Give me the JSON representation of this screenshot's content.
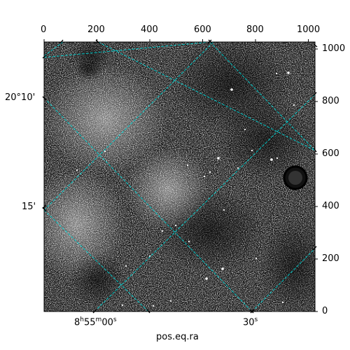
{
  "figure": {
    "image_description_colormap": "grayscale",
    "grid_color": "#00c8c8",
    "star_color": "#ffffff",
    "background_color": "#ffffff"
  },
  "pixel_axes": {
    "top_ticks": [
      "0",
      "200",
      "400",
      "600",
      "800",
      "1000"
    ],
    "right_ticks": [
      "0",
      "200",
      "400",
      "600",
      "800",
      "1000"
    ]
  },
  "world_axes": {
    "dec_ticks": [
      "20°10'",
      "15'"
    ],
    "ra_ticks_main": [
      "8",
      "55",
      "00"
    ],
    "ra_tick_units": [
      "h",
      "m",
      "s"
    ],
    "ra_ticks_second": "30",
    "ra_ticks_second_unit": "s",
    "xlabel": "pos.eq.ra"
  }
}
